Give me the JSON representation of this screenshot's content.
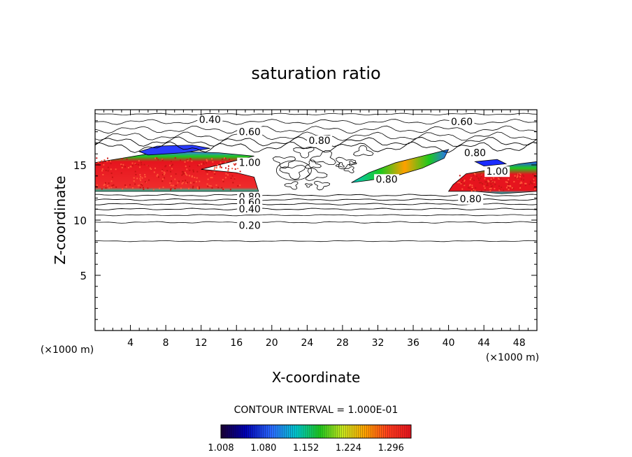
{
  "chart_data": {
    "type": "heatmap",
    "title": "saturation ratio",
    "xlabel": "X-coordinate",
    "ylabel": "Z-coordinate",
    "x_unit_left": "(×1000 m)",
    "x_unit_right": "(×1000 m)",
    "xlim": [
      0,
      50
    ],
    "ylim": [
      0,
      20
    ],
    "x_ticks": [
      "4",
      "8",
      "12",
      "16",
      "20",
      "24",
      "28",
      "32",
      "36",
      "40",
      "44",
      "48"
    ],
    "y_ticks": [
      "5",
      "10",
      "15"
    ],
    "contour_interval_label": "CONTOUR INTERVAL = 1.000E-01",
    "colorbar": {
      "range": [
        1.008,
        1.33
      ],
      "tick_labels": [
        "1.008",
        "1.080",
        "1.152",
        "1.224",
        "1.296"
      ],
      "colors": [
        "#1a0033",
        "#0000b4",
        "#2a6cff",
        "#00c8c8",
        "#1ec81e",
        "#c8e61e",
        "#ffa000",
        "#ff3c1e",
        "#e6141e"
      ]
    },
    "contour_labels": [
      {
        "text": "0.40",
        "x": 13.0,
        "y": 18.8
      },
      {
        "text": "0.60",
        "x": 17.5,
        "y": 17.7
      },
      {
        "text": "0.60",
        "x": 41.5,
        "y": 18.6
      },
      {
        "text": "0.80",
        "x": 25.4,
        "y": 16.9
      },
      {
        "text": "0.80",
        "x": 43.0,
        "y": 15.8
      },
      {
        "text": "0.80",
        "x": 33.0,
        "y": 13.4
      },
      {
        "text": "0.80",
        "x": 42.5,
        "y": 11.6
      },
      {
        "text": "1.00",
        "x": 17.5,
        "y": 14.9
      },
      {
        "text": "1.00",
        "x": 45.5,
        "y": 14.1
      },
      {
        "text": "0.80",
        "x": 17.5,
        "y": 11.8
      },
      {
        "text": "0.60",
        "x": 17.5,
        "y": 11.3
      },
      {
        "text": "0.40",
        "x": 17.5,
        "y": 10.7
      },
      {
        "text": "0.20",
        "x": 17.5,
        "y": 9.2
      }
    ],
    "supersaturated_regions": [
      {
        "name": "west",
        "x_range": [
          0,
          18
        ],
        "z_range": [
          12.6,
          16.3
        ],
        "peak": 1.3
      },
      {
        "name": "center-east",
        "x_range": [
          29,
          40
        ],
        "z_range": [
          13.3,
          16.3
        ],
        "peak": 1.25
      },
      {
        "name": "east",
        "x_range": [
          40,
          50
        ],
        "z_range": [
          12.6,
          15.5
        ],
        "peak": 1.3
      }
    ]
  }
}
